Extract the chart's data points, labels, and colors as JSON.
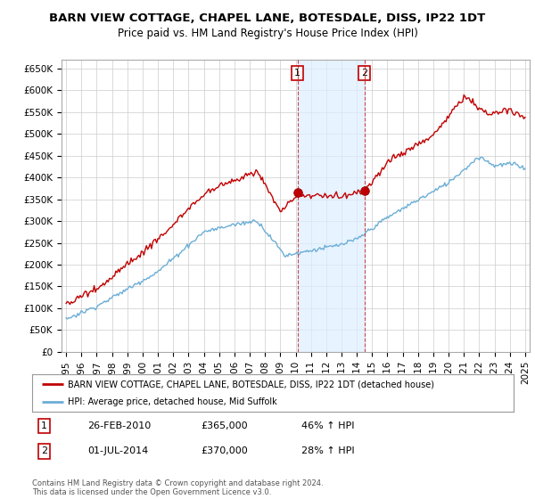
{
  "title": "BARN VIEW COTTAGE, CHAPEL LANE, BOTESDALE, DISS, IP22 1DT",
  "subtitle": "Price paid vs. HM Land Registry's House Price Index (HPI)",
  "ylabel_ticks": [
    "£0",
    "£50K",
    "£100K",
    "£150K",
    "£200K",
    "£250K",
    "£300K",
    "£350K",
    "£400K",
    "£450K",
    "£500K",
    "£550K",
    "£600K",
    "£650K"
  ],
  "ytick_values": [
    0,
    50000,
    100000,
    150000,
    200000,
    250000,
    300000,
    350000,
    400000,
    450000,
    500000,
    550000,
    600000,
    650000
  ],
  "xlim_start": 1994.7,
  "xlim_end": 2025.3,
  "ylim_min": 0,
  "ylim_max": 670000,
  "sale1_date": 2010.13,
  "sale1_price": 365000,
  "sale1_label": "1",
  "sale1_hpi_pct": "46% ↑ HPI",
  "sale1_date_str": "26-FEB-2010",
  "sale2_date": 2014.5,
  "sale2_price": 370000,
  "sale2_label": "2",
  "sale2_hpi_pct": "28% ↑ HPI",
  "sale2_date_str": "01-JUL-2014",
  "hpi_color": "#6baed6",
  "price_color": "#c00000",
  "vline_color": "#c00000",
  "shade_color": "#ddeeff",
  "grid_color": "#cccccc",
  "background_color": "#ffffff",
  "plot_bg_color": "#ffffff",
  "legend_line1": "BARN VIEW COTTAGE, CHAPEL LANE, BOTESDALE, DISS, IP22 1DT (detached house)",
  "legend_line2": "HPI: Average price, detached house, Mid Suffolk",
  "footnote": "Contains HM Land Registry data © Crown copyright and database right 2024.\nThis data is licensed under the Open Government Licence v3.0."
}
